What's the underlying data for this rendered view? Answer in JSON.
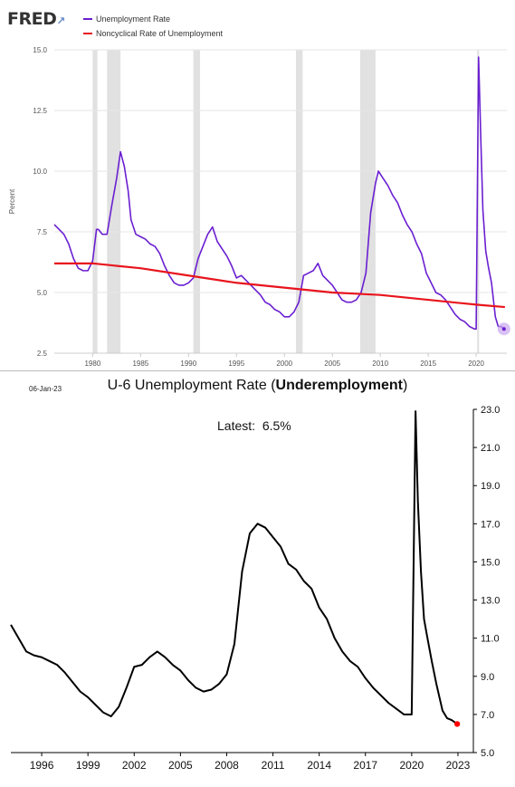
{
  "top": {
    "logo": "FRED",
    "legend": [
      {
        "label": "Unemployment Rate",
        "color": "#6a1fd1"
      },
      {
        "label": "Noncyclical Rate of Unemployment",
        "color": "#e8141c"
      }
    ]
  },
  "bottom": {
    "date": "06-Jan-23",
    "title_plain": "U-6 Unemployment Rate (",
    "title_bold": "Underemployment",
    "title_end": ")",
    "latest_label": "Latest:",
    "latest_value": "6.5%"
  },
  "chart_data": [
    {
      "type": "line",
      "ylabel": "Percent",
      "ylim": [
        2.5,
        15.0
      ],
      "xlim": [
        1976.0,
        2023.2
      ],
      "y_ticks": [
        "2.5",
        "5.0",
        "7.5",
        "10.0",
        "12.5",
        "15.0"
      ],
      "x_ticks": [
        "1980",
        "1985",
        "1990",
        "1995",
        "2000",
        "2005",
        "2010",
        "2015",
        "2020"
      ],
      "grid": true,
      "legend_position": "top-left",
      "recessions": [
        [
          1980.0,
          1980.5
        ],
        [
          1981.5,
          1982.9
        ],
        [
          1990.5,
          1991.2
        ],
        [
          2001.2,
          2001.9
        ],
        [
          2007.9,
          2009.5
        ],
        [
          2020.1,
          2020.3
        ]
      ],
      "series": [
        {
          "name": "Unemployment Rate",
          "color": "#6a1fd1",
          "x": [
            1976.0,
            1976.5,
            1977.0,
            1977.5,
            1978.0,
            1978.5,
            1979.0,
            1979.5,
            1980.0,
            1980.4,
            1980.6,
            1981.0,
            1981.5,
            1982.0,
            1982.5,
            1982.9,
            1983.3,
            1983.7,
            1984.0,
            1984.5,
            1985.0,
            1985.5,
            1986.0,
            1986.5,
            1987.0,
            1987.5,
            1988.0,
            1988.5,
            1989.0,
            1989.5,
            1990.0,
            1990.5,
            1991.0,
            1991.5,
            1992.0,
            1992.5,
            1993.0,
            1993.5,
            1994.0,
            1994.5,
            1995.0,
            1995.5,
            1996.0,
            1996.5,
            1997.0,
            1997.5,
            1998.0,
            1998.5,
            1999.0,
            1999.5,
            2000.0,
            2000.5,
            2001.0,
            2001.5,
            2002.0,
            2002.5,
            2003.0,
            2003.5,
            2004.0,
            2004.5,
            2005.0,
            2005.5,
            2006.0,
            2006.5,
            2007.0,
            2007.5,
            2008.0,
            2008.5,
            2009.0,
            2009.5,
            2009.8,
            2010.3,
            2010.8,
            2011.3,
            2011.8,
            2012.3,
            2012.8,
            2013.3,
            2013.8,
            2014.3,
            2014.8,
            2015.3,
            2015.8,
            2016.3,
            2016.8,
            2017.3,
            2017.8,
            2018.3,
            2018.8,
            2019.3,
            2019.8,
            2020.0,
            2020.25,
            2020.35,
            2020.5,
            2020.7,
            2021.0,
            2021.3,
            2021.6,
            2022.0,
            2022.3,
            2022.6,
            2022.9
          ],
          "y": [
            7.8,
            7.6,
            7.4,
            7.0,
            6.4,
            6.0,
            5.9,
            5.9,
            6.3,
            7.6,
            7.6,
            7.4,
            7.4,
            8.6,
            9.7,
            10.8,
            10.2,
            9.2,
            8.0,
            7.4,
            7.3,
            7.2,
            7.0,
            6.9,
            6.6,
            6.1,
            5.7,
            5.4,
            5.3,
            5.3,
            5.4,
            5.6,
            6.4,
            6.9,
            7.4,
            7.7,
            7.1,
            6.8,
            6.5,
            6.1,
            5.6,
            5.7,
            5.5,
            5.3,
            5.1,
            4.9,
            4.6,
            4.5,
            4.3,
            4.2,
            4.0,
            4.0,
            4.2,
            4.6,
            5.7,
            5.8,
            5.9,
            6.2,
            5.7,
            5.5,
            5.3,
            5.0,
            4.7,
            4.6,
            4.6,
            4.7,
            5.0,
            5.8,
            8.3,
            9.5,
            10.0,
            9.7,
            9.4,
            9.0,
            8.7,
            8.2,
            7.8,
            7.5,
            7.0,
            6.6,
            5.8,
            5.4,
            5.0,
            4.9,
            4.7,
            4.4,
            4.1,
            3.9,
            3.8,
            3.6,
            3.5,
            3.5,
            14.7,
            13.3,
            11.1,
            8.4,
            6.7,
            6.0,
            5.4,
            4.0,
            3.6,
            3.6,
            3.5
          ]
        },
        {
          "name": "Noncyclical Rate of Unemployment",
          "color": "#e8141c",
          "x": [
            1976.0,
            1980.0,
            1985.0,
            1990.0,
            1995.0,
            2000.0,
            2005.0,
            2010.0,
            2015.0,
            2020.0,
            2023.0
          ],
          "y": [
            6.2,
            6.2,
            6.0,
            5.7,
            5.4,
            5.2,
            5.0,
            4.9,
            4.7,
            4.5,
            4.4
          ]
        }
      ],
      "endpoint_marker": {
        "x": 2022.9,
        "y": 3.5
      }
    },
    {
      "type": "line",
      "title": "U-6 Unemployment Rate (Underemployment)",
      "ylim": [
        5.0,
        23.0
      ],
      "xlim": [
        1994.0,
        2024.0
      ],
      "y_ticks": [
        "5.0",
        "7.0",
        "9.0",
        "11.0",
        "13.0",
        "15.0",
        "17.0",
        "19.0",
        "21.0",
        "23.0"
      ],
      "x_ticks": [
        "1996",
        "1999",
        "2002",
        "2005",
        "2008",
        "2011",
        "2014",
        "2017",
        "2020",
        "2023"
      ],
      "grid": false,
      "series": [
        {
          "name": "",
          "color": "#000000",
          "x": [
            1994.0,
            1994.5,
            1995.0,
            1995.5,
            1996.0,
            1996.5,
            1997.0,
            1997.5,
            1998.0,
            1998.5,
            1999.0,
            1999.5,
            2000.0,
            2000.5,
            2001.0,
            2001.5,
            2002.0,
            2002.5,
            2003.0,
            2003.5,
            2004.0,
            2004.5,
            2005.0,
            2005.5,
            2006.0,
            2006.5,
            2007.0,
            2007.5,
            2008.0,
            2008.5,
            2009.0,
            2009.5,
            2010.0,
            2010.5,
            2011.0,
            2011.5,
            2012.0,
            2012.5,
            2013.0,
            2013.5,
            2014.0,
            2014.5,
            2015.0,
            2015.5,
            2016.0,
            2016.5,
            2017.0,
            2017.5,
            2018.0,
            2018.5,
            2019.0,
            2019.5,
            2020.0,
            2020.25,
            2020.4,
            2020.6,
            2020.8,
            2021.0,
            2021.3,
            2021.6,
            2022.0,
            2022.3,
            2022.6,
            2022.95
          ],
          "y": [
            11.7,
            11.0,
            10.3,
            10.1,
            10.0,
            9.8,
            9.6,
            9.2,
            8.7,
            8.2,
            7.9,
            7.5,
            7.1,
            6.9,
            7.4,
            8.4,
            9.5,
            9.6,
            10.0,
            10.3,
            10.0,
            9.6,
            9.3,
            8.8,
            8.4,
            8.2,
            8.3,
            8.6,
            9.1,
            10.7,
            14.5,
            16.5,
            17.0,
            16.8,
            16.3,
            15.8,
            14.9,
            14.6,
            14.0,
            13.6,
            12.6,
            12.0,
            11.0,
            10.3,
            9.8,
            9.5,
            8.9,
            8.4,
            8.0,
            7.6,
            7.3,
            7.0,
            7.0,
            22.9,
            18.2,
            14.5,
            12.0,
            11.1,
            9.8,
            8.6,
            7.2,
            6.8,
            6.7,
            6.5
          ]
        }
      ],
      "latest_marker": {
        "x": 2022.95,
        "y": 6.5,
        "color": "#ff0000"
      }
    }
  ]
}
